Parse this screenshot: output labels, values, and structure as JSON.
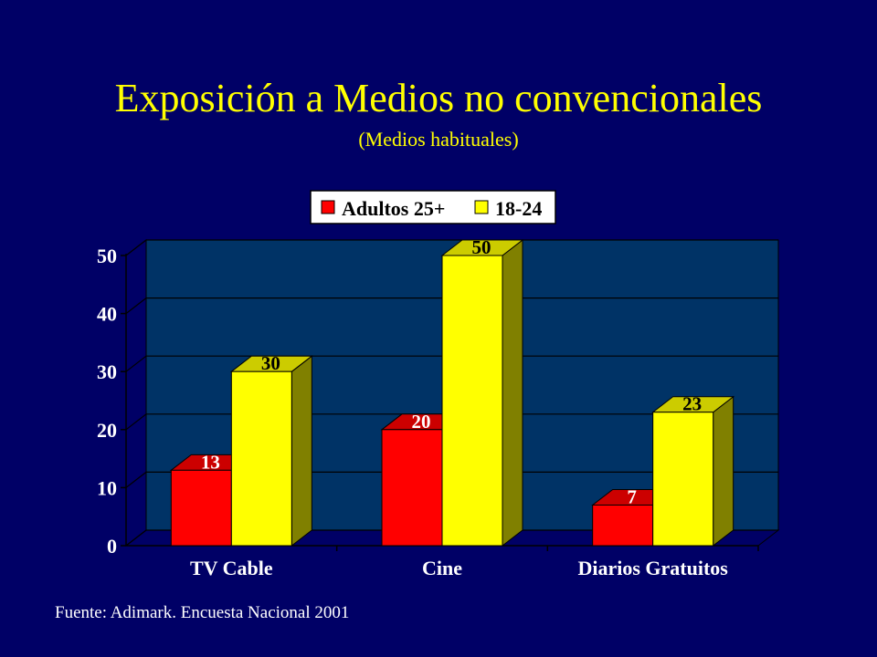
{
  "title": "Exposición a Medios no convencionales",
  "subtitle": "(Medios habituales)",
  "source": "Fuente: Adimark. Encuesta Nacional 2001",
  "chart_data": {
    "type": "bar",
    "categories": [
      "TV Cable",
      "Cine",
      "Diarios Gratuitos"
    ],
    "series": [
      {
        "name": "Adultos 25+",
        "values": [
          13,
          20,
          7
        ],
        "color": "#ff0000",
        "top_color": "#cc0000",
        "side_color": "#990000"
      },
      {
        "name": "18-24",
        "values": [
          30,
          50,
          23
        ],
        "color": "#ffff00",
        "top_color": "#cccc00",
        "side_color": "#808000"
      }
    ],
    "yticks": [
      "0",
      "10",
      "20",
      "30",
      "40",
      "50"
    ],
    "ylim": [
      0,
      50
    ],
    "grid": true,
    "legend": "top-center",
    "plot_color": "#003366"
  }
}
